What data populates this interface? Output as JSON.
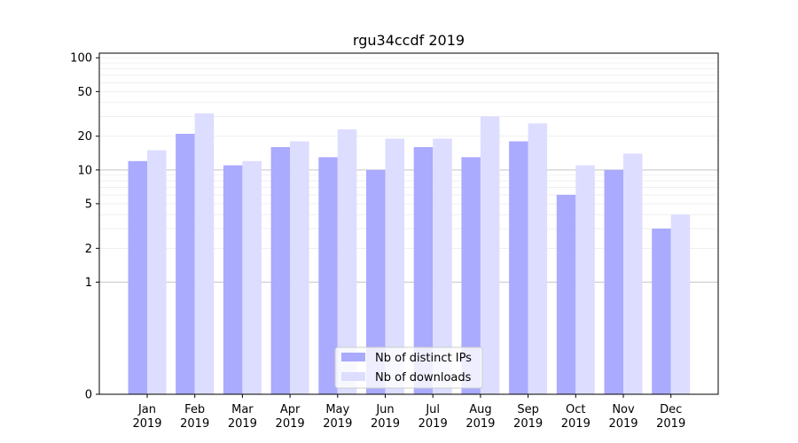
{
  "chart_data": {
    "type": "bar",
    "title": "rgu34ccdf 2019",
    "xlabel": "",
    "ylabel": "",
    "y_scale": "symlog",
    "y_ticks": [
      0,
      1,
      2,
      5,
      10,
      20,
      50,
      100
    ],
    "categories": [
      [
        "Jan",
        "2019"
      ],
      [
        "Feb",
        "2019"
      ],
      [
        "Mar",
        "2019"
      ],
      [
        "Apr",
        "2019"
      ],
      [
        "May",
        "2019"
      ],
      [
        "Jun",
        "2019"
      ],
      [
        "Jul",
        "2019"
      ],
      [
        "Aug",
        "2019"
      ],
      [
        "Sep",
        "2019"
      ],
      [
        "Oct",
        "2019"
      ],
      [
        "Nov",
        "2019"
      ],
      [
        "Dec",
        "2019"
      ]
    ],
    "series": [
      {
        "name": "Nb of distinct IPs",
        "color": "#aaaaff",
        "values": [
          12,
          21,
          11,
          16,
          13,
          10,
          16,
          13,
          18,
          6,
          10,
          3
        ]
      },
      {
        "name": "Nb of downloads",
        "color": "#ddddff",
        "values": [
          15,
          32,
          12,
          18,
          23,
          19,
          19,
          30,
          26,
          11,
          14,
          4
        ]
      }
    ],
    "legend_position": "lower center",
    "grid": true
  }
}
